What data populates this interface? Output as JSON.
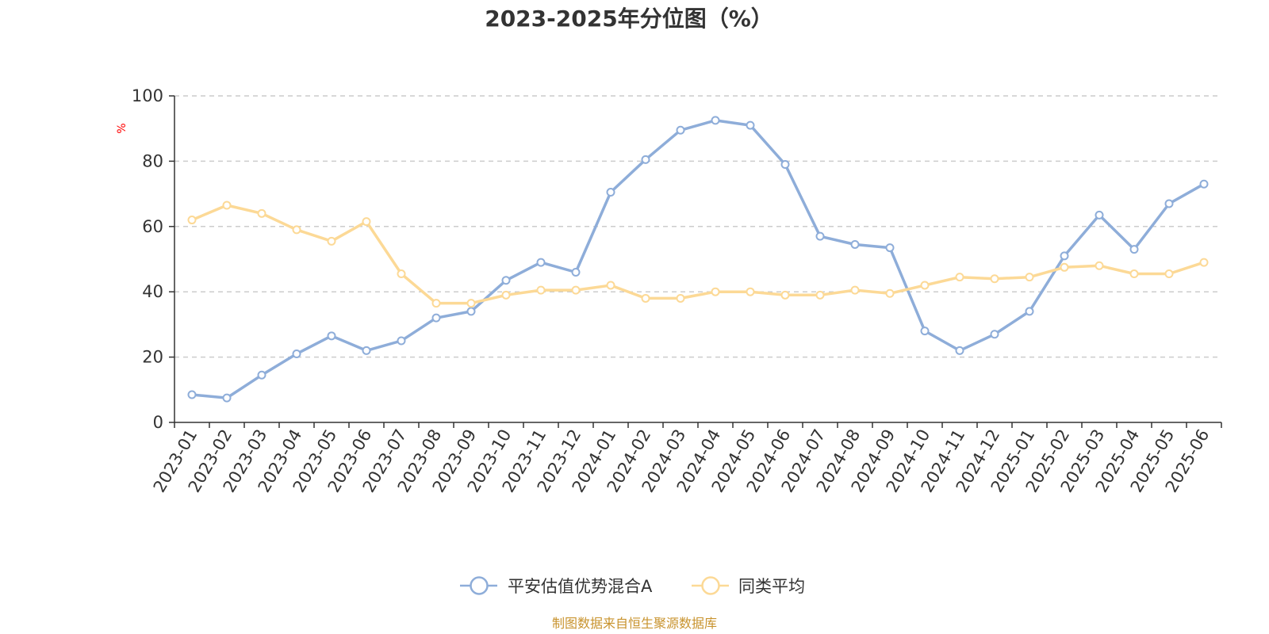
{
  "chart_data": {
    "type": "line",
    "title": "2023-2025年分位图（%）",
    "ylabel": "%",
    "ylim": [
      0,
      100
    ],
    "yticks": [
      "0",
      "20",
      "40",
      "60",
      "80",
      "100"
    ],
    "grid": "horizontal-dashed",
    "legend_position": "bottom-center",
    "categories": [
      "2023-01",
      "2023-02",
      "2023-03",
      "2023-04",
      "2023-05",
      "2023-06",
      "2023-07",
      "2023-08",
      "2023-09",
      "2023-10",
      "2023-11",
      "2023-12",
      "2024-01",
      "2024-02",
      "2024-03",
      "2024-04",
      "2024-05",
      "2024-06",
      "2024-07",
      "2024-08",
      "2024-09",
      "2024-10",
      "2024-11",
      "2024-12",
      "2025-01",
      "2025-02",
      "2025-03",
      "2025-04",
      "2025-05",
      "2025-06"
    ],
    "series": [
      {
        "name": "平安估值优势混合A",
        "color": "#8eadd9",
        "values": [
          8.5,
          7.5,
          14.5,
          21,
          26.5,
          22,
          25,
          32,
          34,
          43.5,
          49,
          46,
          70.5,
          80.5,
          89.5,
          92.5,
          91,
          79,
          57,
          54.5,
          53.5,
          28,
          22,
          27,
          34,
          51,
          63.5,
          53,
          67,
          73
        ]
      },
      {
        "name": "同类平均",
        "color": "#fcd996",
        "values": [
          62,
          66.5,
          64,
          59,
          55.5,
          61.5,
          45.5,
          36.5,
          36.5,
          39,
          40.5,
          40.5,
          42,
          38,
          38,
          40,
          40,
          39,
          39,
          40.5,
          39.5,
          42,
          44.5,
          44,
          44.5,
          47.5,
          48,
          45.5,
          45.5,
          49
        ]
      }
    ],
    "source": "制图数据来自恒生聚源数据库",
    "colors": {
      "axis": "#333333",
      "grid": "#cccccc",
      "unit_label": "#ff0000",
      "source": "#c8932e"
    }
  }
}
